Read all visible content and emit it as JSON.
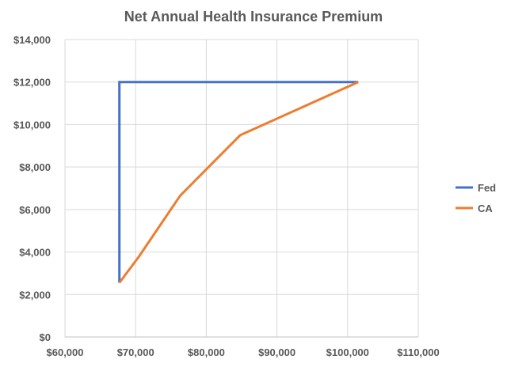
{
  "chart_data": {
    "type": "line",
    "title": "Net Annual Health Insurance Premium",
    "xlabel": "",
    "ylabel": "",
    "xlim": [
      60000,
      110000
    ],
    "ylim": [
      0,
      14000
    ],
    "x_ticks": [
      60000,
      70000,
      80000,
      90000,
      100000,
      110000
    ],
    "y_ticks": [
      0,
      2000,
      4000,
      6000,
      8000,
      10000,
      12000,
      14000
    ],
    "x_tick_labels": [
      "$60,000",
      "$70,000",
      "$80,000",
      "$90,000",
      "$100,000",
      "$110,000"
    ],
    "y_tick_labels": [
      "$0",
      "$2,000",
      "$4,000",
      "$6,000",
      "$8,000",
      "$10,000",
      "$12,000",
      "$14,000"
    ],
    "grid": true,
    "legend_position": "right",
    "series": [
      {
        "name": "Fed",
        "color": "#4472C4",
        "x": [
          67700,
          67700,
          67700,
          101500
        ],
        "y": [
          2550,
          2550,
          12000,
          12000
        ]
      },
      {
        "name": "CA",
        "color": "#ED7D31",
        "x": [
          67700,
          70500,
          76300,
          84800,
          101500
        ],
        "y": [
          2550,
          3800,
          6650,
          9500,
          12000
        ]
      }
    ]
  }
}
